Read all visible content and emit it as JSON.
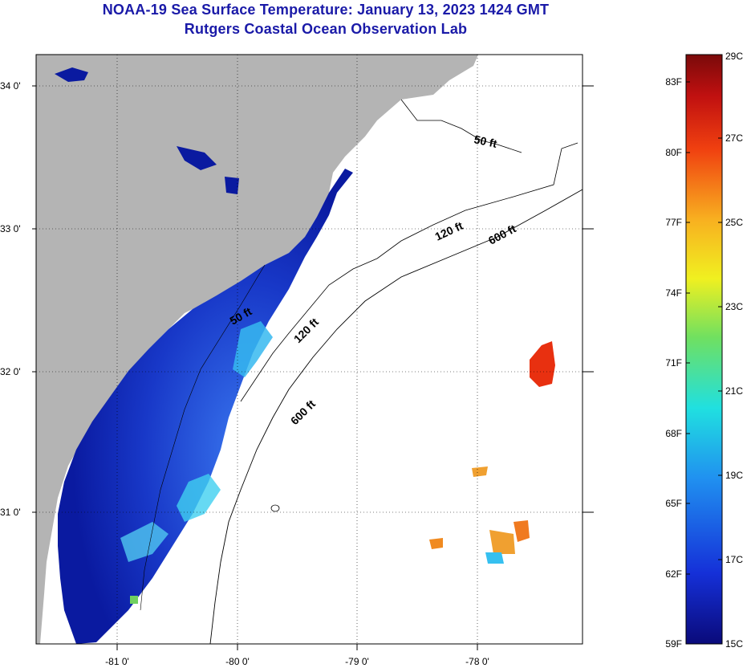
{
  "title": {
    "line1": "NOAA-19 Sea Surface Temperature:  January 13, 2023 1424 GMT",
    "line2": "Rutgers Coastal Ocean Observation Lab"
  },
  "map": {
    "lat_labels": [
      "34 0'",
      "33 0'",
      "32 0'",
      "31 0'"
    ],
    "lon_labels": [
      "-81 0'",
      "-80 0'",
      "-79 0'",
      "-78 0'"
    ],
    "contours": [
      "50 ft",
      "120 ft",
      "600 ft",
      "50 ft",
      "120 ft",
      "600 ft"
    ],
    "colors": {
      "land": "#b4b4b4",
      "cold_water": "#0a1aa0",
      "cool_water": "#2a5cf0",
      "mid_water": "#36d4f0",
      "warm_water": "#f08a20",
      "hot_water": "#e83010"
    }
  },
  "colorbar": {
    "f_labels": [
      "83F",
      "80F",
      "77F",
      "74F",
      "71F",
      "68F",
      "65F",
      "62F",
      "59F"
    ],
    "c_labels": [
      "29C",
      "27C",
      "25C",
      "23C",
      "21C",
      "19C",
      "17C",
      "15C"
    ]
  }
}
